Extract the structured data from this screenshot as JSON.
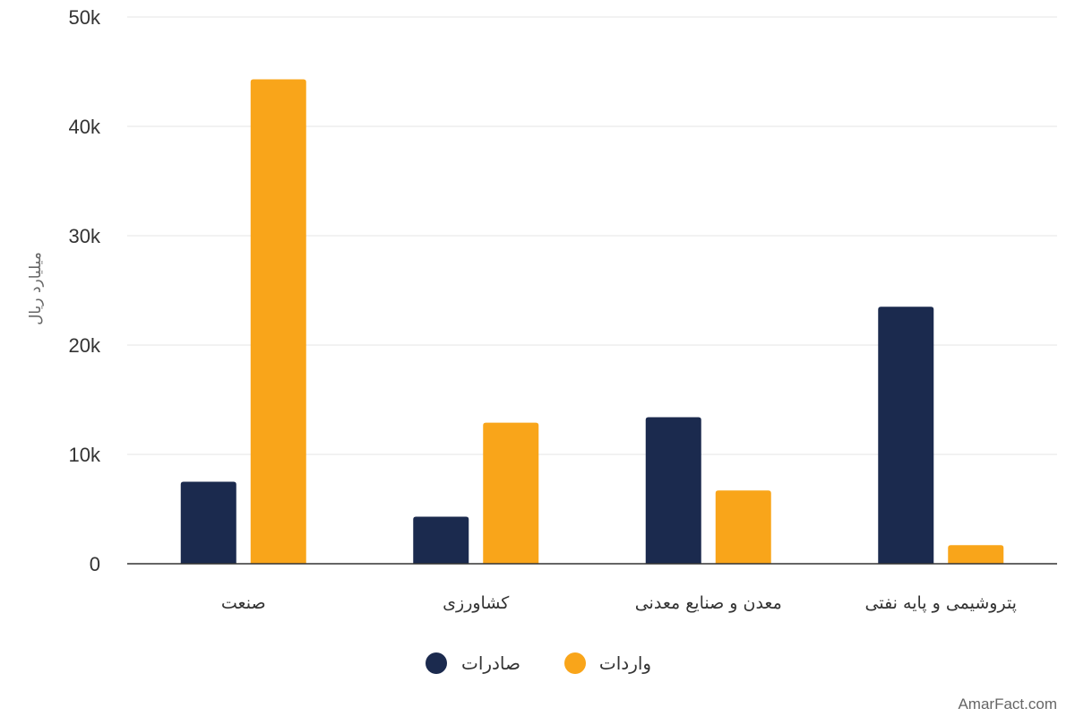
{
  "chart_data": {
    "type": "bar",
    "categories": [
      "صنعت",
      "کشاورزی",
      "معدن و صنایع معدنی",
      "پتروشیمی و پایه نفتی"
    ],
    "series": [
      {
        "name": "صادرات",
        "values": [
          7500,
          4300,
          13400,
          23500
        ],
        "color": "#1b2a4e"
      },
      {
        "name": "واردات",
        "values": [
          44300,
          12900,
          6700,
          1700
        ],
        "color": "#f9a51a"
      }
    ],
    "ylabel": "میلیارد ریال",
    "ylim": [
      0,
      50000
    ],
    "yticks": [
      {
        "value": 0,
        "label": "0"
      },
      {
        "value": 10000,
        "label": "10k"
      },
      {
        "value": 20000,
        "label": "20k"
      },
      {
        "value": 30000,
        "label": "30k"
      },
      {
        "value": 40000,
        "label": "40k"
      },
      {
        "value": 50000,
        "label": "50k"
      }
    ],
    "grid": true,
    "legend_position": "bottom-center"
  },
  "watermark": "AmarFact.com"
}
